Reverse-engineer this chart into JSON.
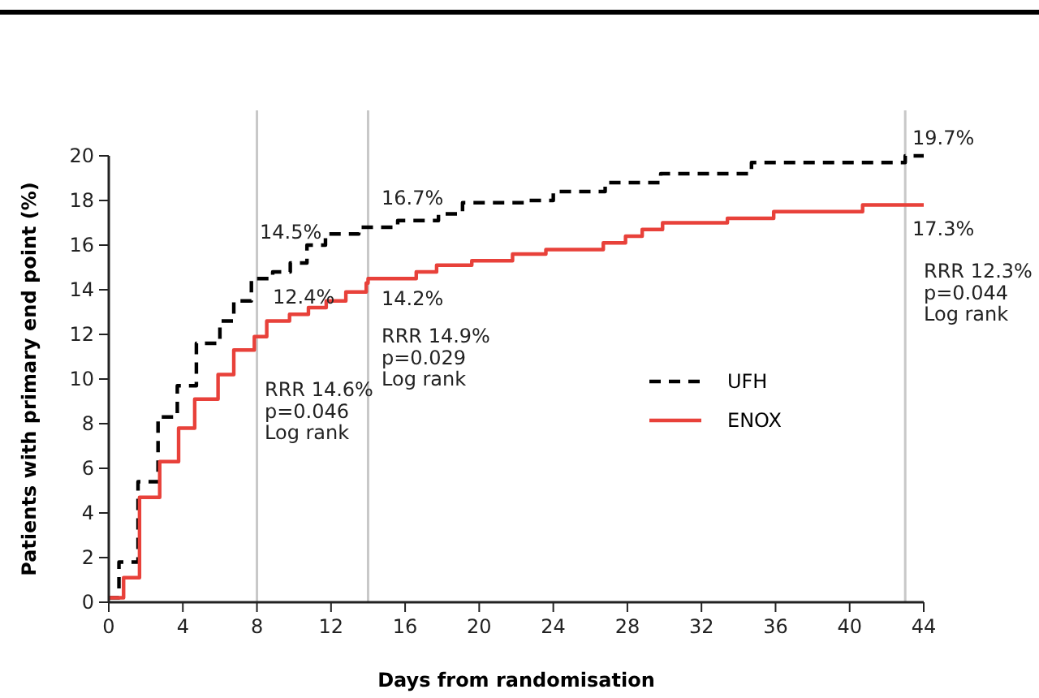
{
  "chart_data": {
    "type": "step",
    "xlabel": "Days from randomisation",
    "ylabel": "Patients with primary end point (%)",
    "xlim": [
      0,
      44
    ],
    "ylim": [
      0,
      20
    ],
    "xticks": [
      0,
      4,
      8,
      12,
      16,
      20,
      24,
      28,
      32,
      36,
      40,
      44
    ],
    "yticks": [
      0,
      2,
      4,
      6,
      8,
      10,
      12,
      14,
      16,
      18,
      20
    ],
    "grid": false,
    "legend": "right",
    "marker": "none",
    "series": [
      {
        "name": "UFH",
        "color": "#000000",
        "line_style": "dashed",
        "x": [
          0,
          0.55,
          1.58,
          2.66,
          3.7,
          4.73,
          6.0,
          6.75,
          7.7,
          8.85,
          9.8,
          10.7,
          11.7,
          13.5,
          15.6,
          17.8,
          19.1,
          22.5,
          24.0,
          26.8,
          29.8,
          34.7,
          43.0,
          44
        ],
        "values": [
          0.2,
          1.8,
          5.4,
          8.3,
          9.7,
          11.6,
          12.6,
          13.5,
          14.5,
          14.8,
          15.2,
          16.0,
          16.5,
          16.8,
          17.1,
          17.4,
          17.9,
          18.0,
          18.4,
          18.8,
          19.2,
          19.7,
          20.0,
          20.0
        ]
      },
      {
        "name": "ENOX",
        "color": "#e8413a",
        "line_style": "solid",
        "x": [
          0,
          0.8,
          1.66,
          2.75,
          3.77,
          4.64,
          5.9,
          6.75,
          7.86,
          8.53,
          9.76,
          10.78,
          11.74,
          12.8,
          13.9,
          14.0,
          16.6,
          17.7,
          19.6,
          21.8,
          23.6,
          26.7,
          27.9,
          28.8,
          29.9,
          33.4,
          35.9,
          40.7,
          44
        ],
        "values": [
          0.2,
          1.1,
          4.7,
          6.3,
          7.8,
          9.1,
          10.2,
          11.3,
          11.9,
          12.6,
          12.9,
          13.2,
          13.5,
          13.9,
          14.3,
          14.5,
          14.8,
          15.1,
          15.3,
          15.6,
          15.8,
          16.1,
          16.4,
          16.7,
          17.0,
          17.2,
          17.5,
          17.8,
          17.8
        ]
      }
    ],
    "ref_lines": [
      {
        "axis": "x",
        "value": 8,
        "color": "#c8c8c8"
      },
      {
        "axis": "x",
        "value": 14,
        "color": "#c8c8c8"
      },
      {
        "axis": "x",
        "value": 43,
        "color": "#c8c8c8"
      }
    ],
    "annotations": [
      "14.5%",
      "12.4%",
      "RRR 14.6%\np=0.046\nLog rank",
      "16.7%",
      "14.2%",
      "RRR 14.9%\np=0.029\nLog rank",
      "19.7%",
      "17.3%",
      "RRR 12.3%\np=0.044\nLog rank"
    ]
  }
}
